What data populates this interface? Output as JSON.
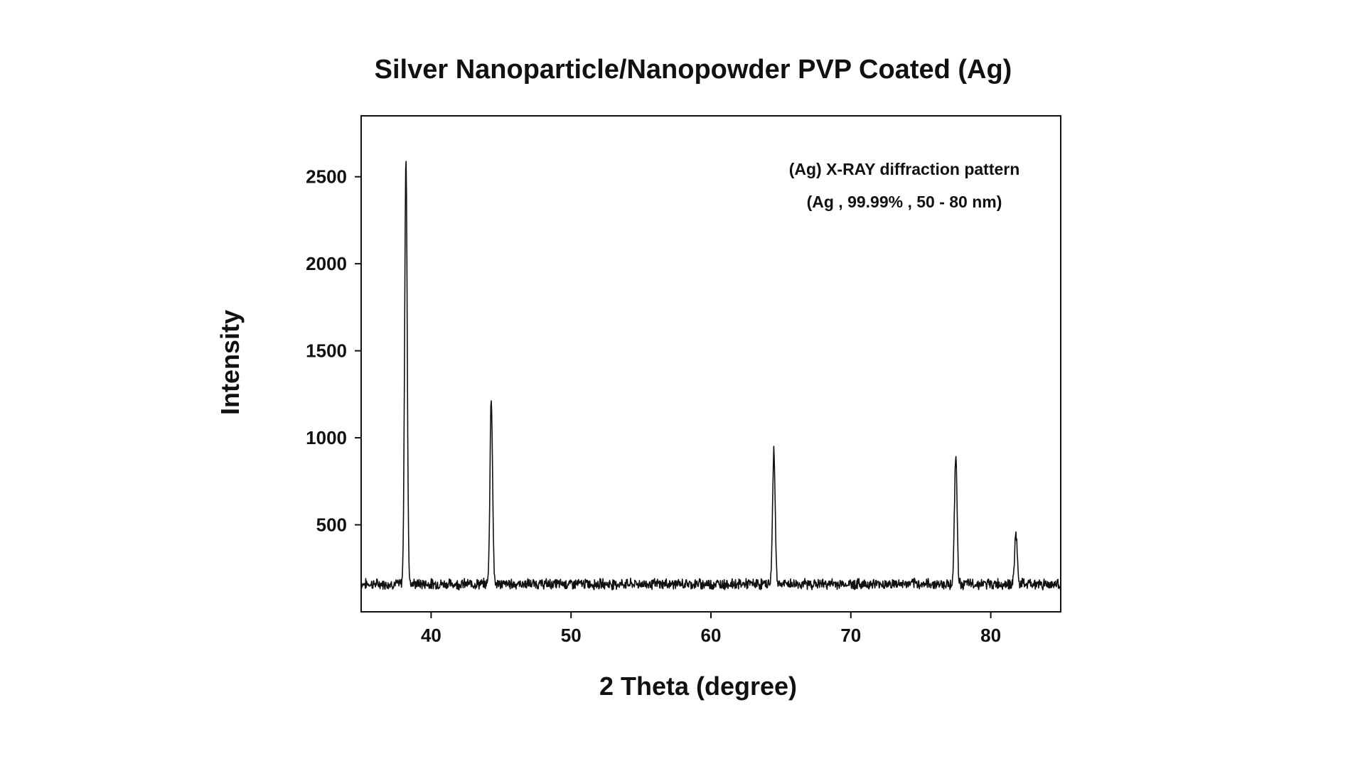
{
  "chart_data": {
    "type": "line",
    "title": "Silver Nanoparticle/Nanopowder PVP Coated (Ag)",
    "xlabel": "2 Theta (degree)",
    "ylabel": "Intensity",
    "xlim": [
      35,
      85
    ],
    "ylim": [
      0,
      2850
    ],
    "x_ticks": [
      40,
      50,
      60,
      70,
      80
    ],
    "y_ticks": [
      500,
      1000,
      1500,
      2000,
      2500
    ],
    "grid": false,
    "legend": "none",
    "line_color": "#111111",
    "annotations": [
      "(Ag) X-RAY diffraction pattern",
      "(Ag , 99.99% , 50 - 80 nm)"
    ],
    "baseline_intensity": 160,
    "peaks": [
      {
        "two_theta": 38.2,
        "intensity": 2600
      },
      {
        "two_theta": 44.3,
        "intensity": 1230
      },
      {
        "two_theta": 64.5,
        "intensity": 930
      },
      {
        "two_theta": 77.5,
        "intensity": 900
      },
      {
        "two_theta": 81.8,
        "intensity": 450
      }
    ]
  }
}
